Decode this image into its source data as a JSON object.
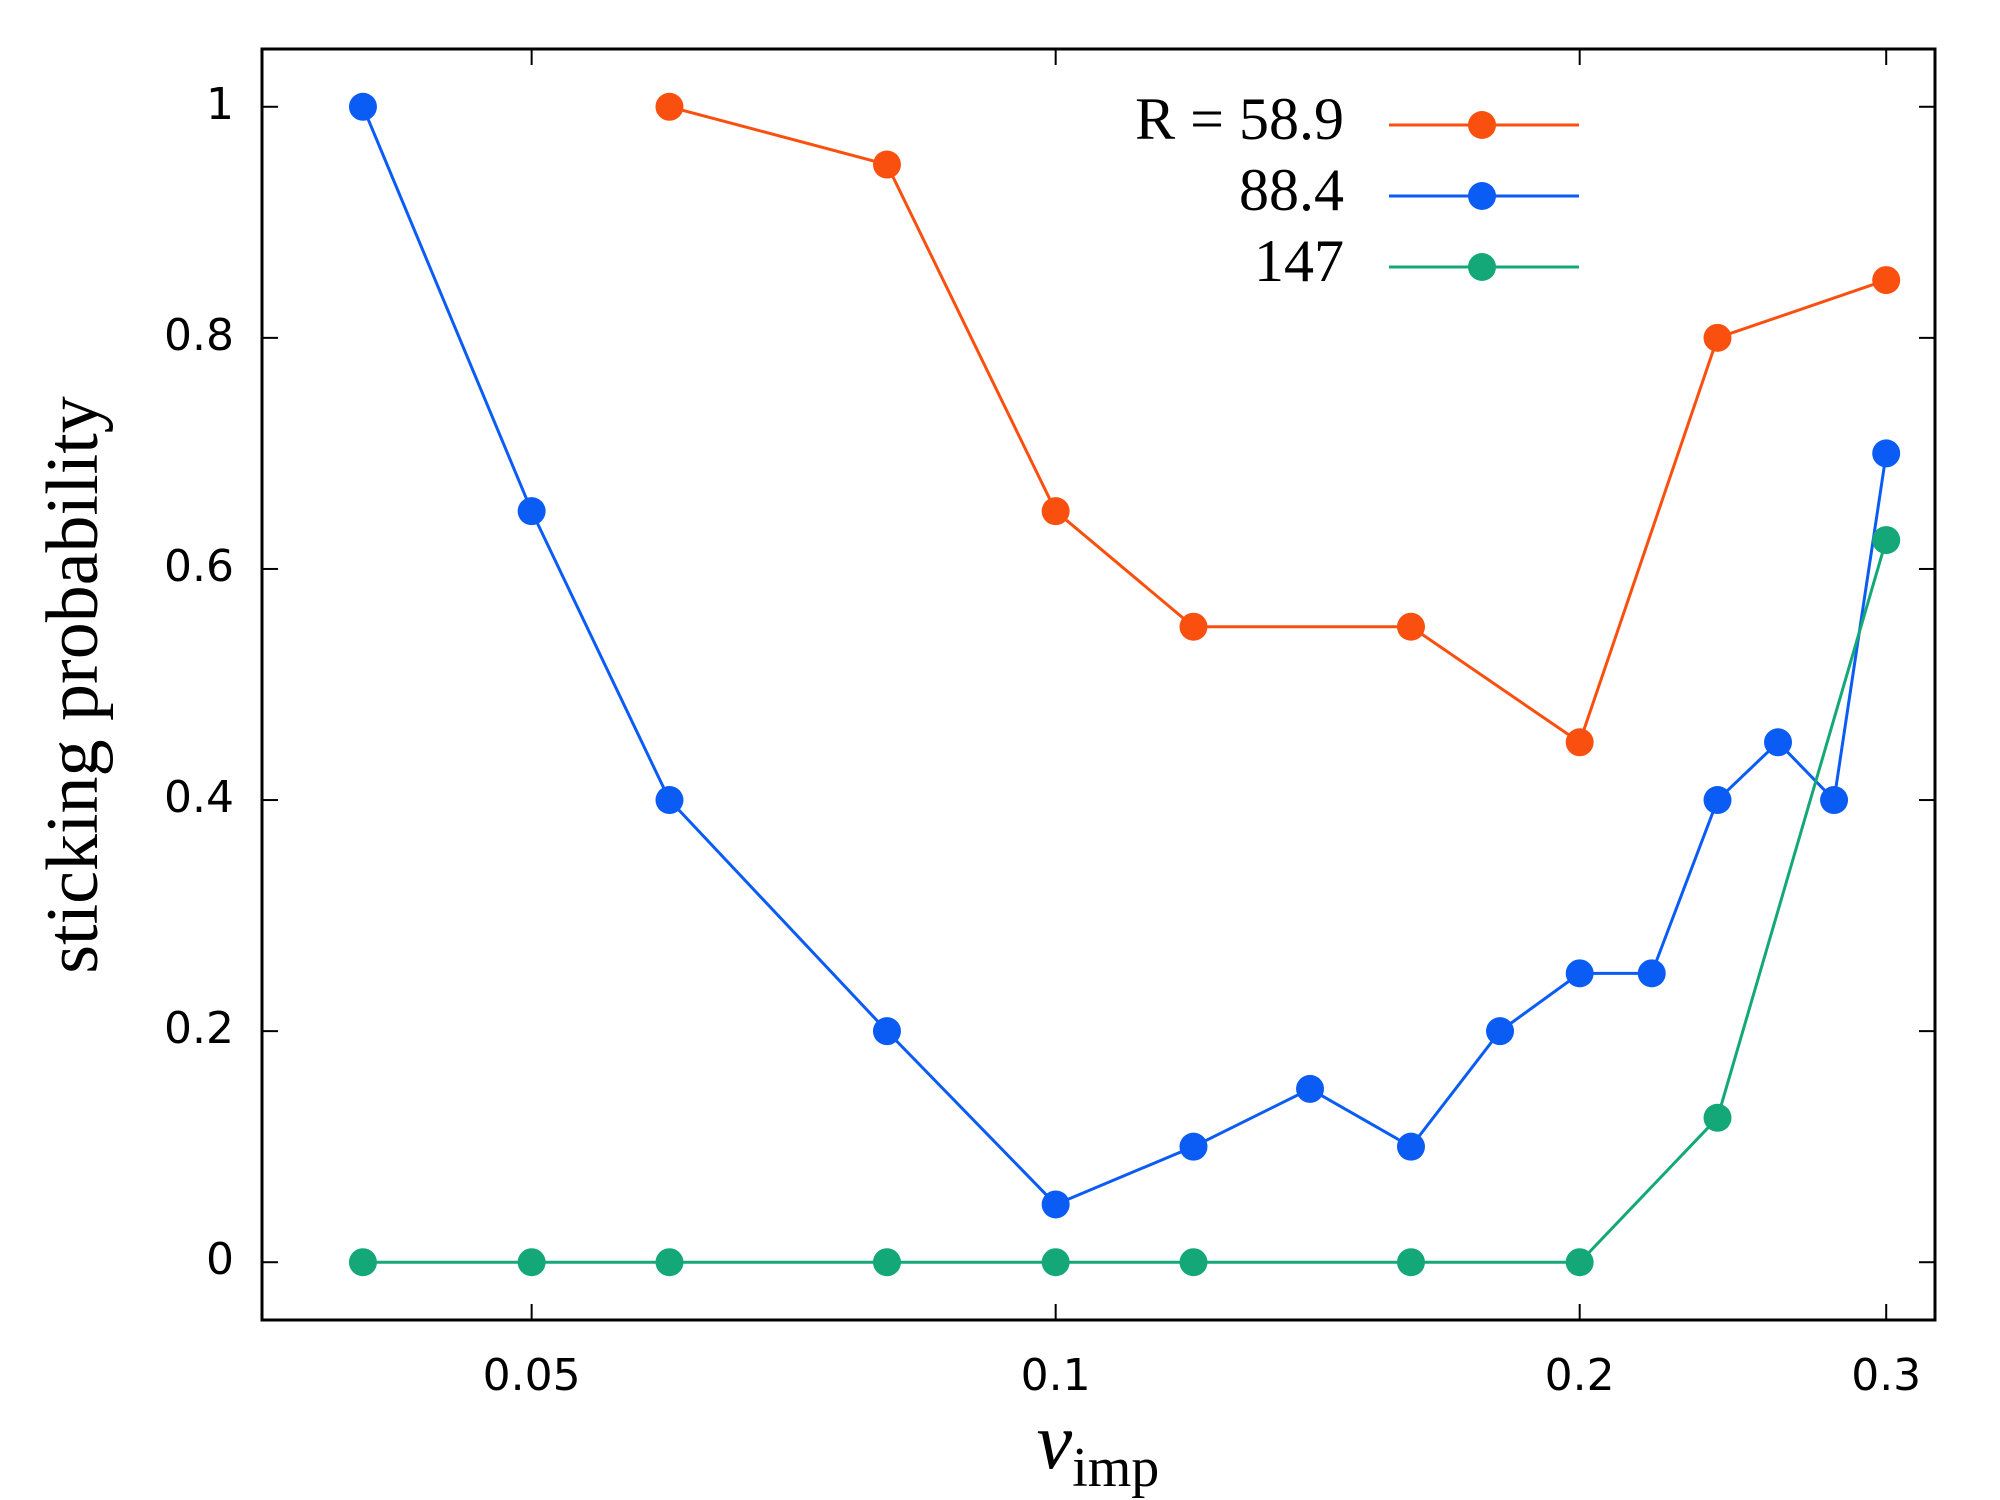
{
  "chart_data": {
    "type": "line",
    "x_label": "v",
    "x_label_sub": "imp",
    "y_label": "sticking probability",
    "xscale": "log",
    "xlim": [
      0.035,
      0.32
    ],
    "xticks": [
      0.05,
      0.1,
      0.2,
      0.3
    ],
    "ylim": [
      -0.05,
      1.05
    ],
    "yticks": [
      0,
      0.2,
      0.4,
      0.6,
      0.8,
      1
    ],
    "grid": false,
    "legend": "top-right",
    "series": [
      {
        "name": "R = 58.9",
        "color": "#fa500f",
        "x": [
          0.06,
          0.08,
          0.1,
          0.12,
          0.16,
          0.2,
          0.24,
          0.3
        ],
        "values": [
          1,
          0.95,
          0.65,
          0.55,
          0.55,
          0.45,
          0.8,
          0.85
        ]
      },
      {
        "name": "88.4",
        "color": "#0a5cf5",
        "x": [
          0.04,
          0.05,
          0.06,
          0.08,
          0.1,
          0.12,
          0.14,
          0.16,
          0.18,
          0.2,
          0.22,
          0.24,
          0.26,
          0.28,
          0.3
        ],
        "values": [
          1,
          0.65,
          0.4,
          0.2,
          0.05,
          0.1,
          0.15,
          0.1,
          0.2,
          0.25,
          0.25,
          0.4,
          0.45,
          0.4,
          0.7
        ]
      },
      {
        "name": "147",
        "color": "#14a878",
        "x": [
          0.04,
          0.05,
          0.06,
          0.08,
          0.1,
          0.12,
          0.16,
          0.2,
          0.24,
          0.3
        ],
        "values": [
          0,
          0,
          0,
          0,
          0,
          0,
          0,
          0,
          0.125,
          0.625
        ]
      }
    ]
  }
}
